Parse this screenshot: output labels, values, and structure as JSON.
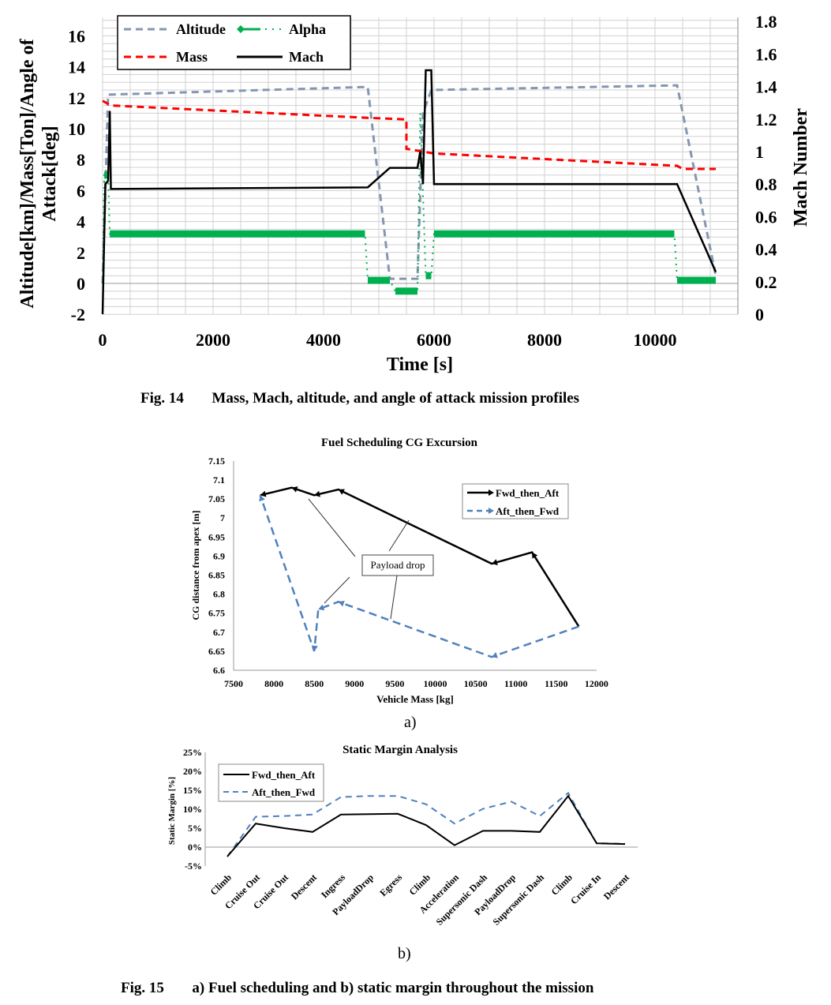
{
  "figure14": {
    "caption_number": "Fig. 14",
    "caption_text": "Mass, Mach, altitude, and angle of attack mission profiles"
  },
  "figure15": {
    "caption_number": "Fig. 15",
    "caption_text": "a) Fuel scheduling and b) static margin throughout the mission",
    "sub_a": "a)",
    "sub_b": "b)"
  },
  "chart_data": [
    {
      "type": "line",
      "title": "",
      "xlabel": "Time [s]",
      "ylabel": "Altitude[km]/Mass[Ton]/Angle of Attack[deg]",
      "y2label": "Mach Number",
      "xlim": [
        0,
        11500
      ],
      "ylim": [
        -2,
        17
      ],
      "y2lim": [
        0,
        1.8
      ],
      "xticks": [
        0,
        2000,
        4000,
        6000,
        8000,
        10000
      ],
      "yticks": [
        -2,
        0,
        2,
        4,
        6,
        8,
        10,
        12,
        14,
        16
      ],
      "y2ticks": [
        "0",
        "0.2",
        "0.4",
        "0.6",
        "0.8",
        "1",
        "1.2",
        "1.4",
        "1.6",
        "1.8"
      ],
      "grid": true,
      "legend": "top-left",
      "series": [
        {
          "name": "Altitude",
          "axis": "left",
          "color": "#8497b0",
          "style": "dashed",
          "x": [
            0,
            50,
            100,
            4800,
            5200,
            5700,
            5800,
            5950,
            10400,
            11100
          ],
          "y": [
            0,
            6,
            12.2,
            12.7,
            0.3,
            0.3,
            11,
            12.5,
            12.8,
            0.5
          ]
        },
        {
          "name": "Alpha",
          "axis": "left",
          "color": "#00b050",
          "style": "dash-dot-diamond",
          "x": [
            0,
            30,
            100,
            130,
            4750,
            4800,
            5200,
            5300,
            5700,
            5750,
            5850,
            5950,
            6000,
            10350,
            10400,
            11100
          ],
          "y": [
            0,
            7,
            7,
            3.2,
            3.2,
            0.2,
            0.2,
            -0.5,
            -0.5,
            11,
            0.5,
            0.5,
            3.2,
            3.2,
            0.2,
            0.2
          ]
        },
        {
          "name": "Mass",
          "axis": "left",
          "color": "#ff0000",
          "style": "dashed",
          "x": [
            0,
            150,
            4800,
            5500,
            5500,
            6000,
            10400,
            10500,
            11100
          ],
          "y": [
            11.8,
            11.5,
            10.7,
            10.6,
            8.7,
            8.4,
            7.6,
            7.4,
            7.4
          ]
        },
        {
          "name": "Mach",
          "axis": "right",
          "color": "#000000",
          "style": "solid",
          "x": [
            0,
            50,
            100,
            130,
            150,
            4800,
            5200,
            5700,
            5750,
            5800,
            5850,
            5950,
            6000,
            10400,
            11100
          ],
          "y": [
            0,
            0.8,
            0.82,
            1.25,
            0.77,
            0.78,
            0.9,
            0.9,
            1.0,
            0.8,
            1.5,
            1.5,
            0.8,
            0.8,
            0.26
          ]
        }
      ]
    },
    {
      "type": "line",
      "title": "Fuel Scheduling CG Excursion",
      "xlabel": "Vehicle Mass [kg]",
      "ylabel": "CG distance from apex [m]",
      "xlim": [
        7500,
        12000
      ],
      "ylim": [
        6.6,
        7.15
      ],
      "xticks": [
        "7500",
        "8000",
        "8500",
        "9000",
        "9500",
        "10000",
        "10500",
        "11000",
        "11500",
        "12000"
      ],
      "yticks": [
        "6.6",
        "6.65",
        "6.7",
        "6.75",
        "6.8",
        "6.85",
        "6.9",
        "6.95",
        "7",
        "7.05",
        "7.1",
        "7.15"
      ],
      "grid": false,
      "legend": "top-right",
      "annotation": "Payload drop",
      "series": [
        {
          "name": "Fwd_then_Aft",
          "color": "#000000",
          "style": "solid-arrow",
          "x": [
            11780,
            11200,
            10700,
            8800,
            8500,
            8220,
            7830
          ],
          "y": [
            6.715,
            6.91,
            6.88,
            7.075,
            7.06,
            7.08,
            7.06
          ]
        },
        {
          "name": "Aft_then_Fwd",
          "color": "#4f81bd",
          "style": "dashed-arrow",
          "x": [
            11780,
            10700,
            8800,
            8550,
            8500,
            7830
          ],
          "y": [
            6.715,
            6.635,
            6.78,
            6.76,
            6.65,
            7.06
          ]
        }
      ]
    },
    {
      "type": "line",
      "title": "Static Margin Analysis",
      "xlabel": "",
      "ylabel": "Static Margin [%]",
      "ylim": [
        -5,
        25
      ],
      "yticks": [
        "-5%",
        "0%",
        "5%",
        "10%",
        "15%",
        "20%",
        "25%"
      ],
      "grid": false,
      "legend": "top-left",
      "categories": [
        "Climb",
        "Cruise Out",
        "Cruise Out",
        "Descent",
        "Ingress",
        "PayloadDrop",
        "Egress",
        "Climb",
        "Acceleration",
        "Supersonic Dash",
        "PayloadDrop",
        "Supersonic Dash",
        "Climb",
        "Cruise In",
        "Descent"
      ],
      "series": [
        {
          "name": "Fwd_then_Aft",
          "color": "#000000",
          "style": "solid",
          "values": [
            -2.5,
            6.2,
            5,
            4,
            8.6,
            8.7,
            8.8,
            5.8,
            0.5,
            4.3,
            4.3,
            4,
            13.5,
            1,
            0.8
          ]
        },
        {
          "name": "Aft_then_Fwd",
          "color": "#4f81bd",
          "style": "dashed",
          "values": [
            -2.5,
            8,
            8.2,
            8.6,
            13.2,
            13.5,
            13.5,
            11.3,
            6.2,
            10.1,
            12,
            8.2,
            14.3,
            1,
            0.9
          ]
        }
      ]
    }
  ]
}
